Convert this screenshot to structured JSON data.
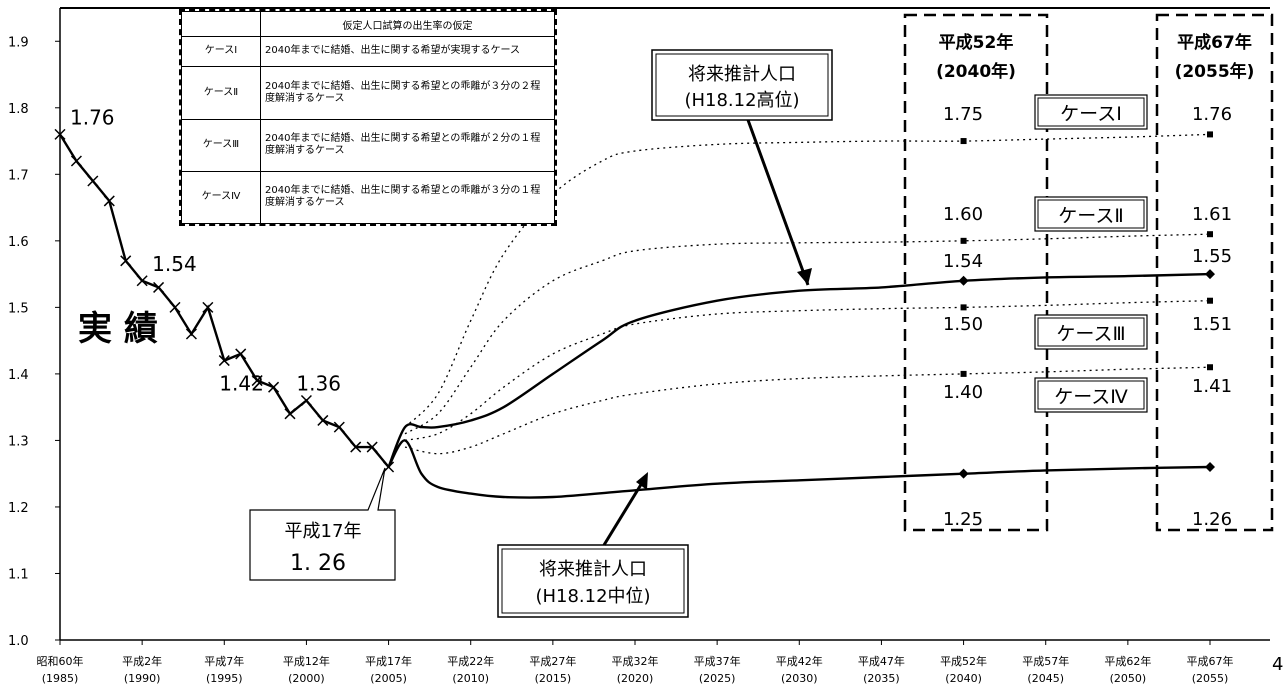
{
  "chart_data": {
    "type": "line",
    "ylim": [
      1.0,
      1.95
    ],
    "y_ticks": [
      "1.0",
      "1.1",
      "1.2",
      "1.3",
      "1.4",
      "1.5",
      "1.6",
      "1.7",
      "1.8",
      "1.9"
    ],
    "x_ticks": [
      {
        "year": 1985,
        "line1": "昭和60年",
        "line2": "(1985)"
      },
      {
        "year": 1990,
        "line1": "平成2年",
        "line2": "(1990)"
      },
      {
        "year": 1995,
        "line1": "平成7年",
        "line2": "(1995)"
      },
      {
        "year": 2000,
        "line1": "平成12年",
        "line2": "(2000)"
      },
      {
        "year": 2005,
        "line1": "平成17年",
        "line2": "(2005)"
      },
      {
        "year": 2010,
        "line1": "平成22年",
        "line2": "(2010)"
      },
      {
        "year": 2015,
        "line1": "平成27年",
        "line2": "(2015)"
      },
      {
        "year": 2020,
        "line1": "平成32年",
        "line2": "(2020)"
      },
      {
        "year": 2025,
        "line1": "平成37年",
        "line2": "(2025)"
      },
      {
        "year": 2030,
        "line1": "平成42年",
        "line2": "(2030)"
      },
      {
        "year": 2035,
        "line1": "平成47年",
        "line2": "(2035)"
      },
      {
        "year": 2040,
        "line1": "平成52年",
        "line2": "(2040)"
      },
      {
        "year": 2045,
        "line1": "平成57年",
        "line2": "(2045)"
      },
      {
        "year": 2050,
        "line1": "平成62年",
        "line2": "(2050)"
      },
      {
        "year": 2055,
        "line1": "平成67年",
        "line2": "(2055)"
      }
    ],
    "series": [
      {
        "name": "実績",
        "style": "solid-cross",
        "x": [
          1985,
          1986,
          1987,
          1988,
          1989,
          1990,
          1991,
          1992,
          1993,
          1994,
          1995,
          1996,
          1997,
          1998,
          1999,
          2000,
          2001,
          2002,
          2003,
          2004,
          2005
        ],
        "y": [
          1.76,
          1.72,
          1.69,
          1.66,
          1.57,
          1.54,
          1.53,
          1.5,
          1.46,
          1.5,
          1.42,
          1.43,
          1.39,
          1.38,
          1.34,
          1.36,
          1.33,
          1.32,
          1.29,
          1.29,
          1.26
        ]
      },
      {
        "name": "将来推計人口(H18.12高位)",
        "style": "solid",
        "x": [
          2005,
          2006,
          2007,
          2008,
          2010,
          2012,
          2015,
          2018,
          2020,
          2025,
          2030,
          2035,
          2040,
          2045,
          2050,
          2055
        ],
        "y": [
          1.26,
          1.32,
          1.32,
          1.32,
          1.33,
          1.35,
          1.4,
          1.45,
          1.48,
          1.51,
          1.525,
          1.53,
          1.54,
          1.545,
          1.547,
          1.55
        ]
      },
      {
        "name": "将来推計人口(H18.12中位)",
        "style": "solid",
        "x": [
          2005,
          2006,
          2007,
          2008,
          2010,
          2012,
          2015,
          2020,
          2025,
          2030,
          2035,
          2040,
          2045,
          2050,
          2055
        ],
        "y": [
          1.26,
          1.3,
          1.25,
          1.23,
          1.22,
          1.215,
          1.215,
          1.225,
          1.235,
          1.24,
          1.245,
          1.25,
          1.255,
          1.258,
          1.26
        ]
      },
      {
        "name": "ケースⅠ",
        "style": "dotted",
        "x": [
          2006,
          2008,
          2010,
          2012,
          2015,
          2018,
          2020,
          2025,
          2030,
          2035,
          2040,
          2045,
          2050,
          2055
        ],
        "y": [
          1.32,
          1.37,
          1.48,
          1.58,
          1.67,
          1.72,
          1.735,
          1.745,
          1.748,
          1.75,
          1.75,
          1.753,
          1.756,
          1.76
        ]
      },
      {
        "name": "ケースⅡ",
        "style": "dotted",
        "x": [
          2006,
          2008,
          2010,
          2012,
          2015,
          2018,
          2020,
          2025,
          2030,
          2035,
          2040,
          2045,
          2050,
          2055
        ],
        "y": [
          1.31,
          1.34,
          1.41,
          1.48,
          1.54,
          1.57,
          1.585,
          1.595,
          1.597,
          1.598,
          1.6,
          1.603,
          1.607,
          1.61
        ]
      },
      {
        "name": "ケースⅢ",
        "style": "dotted",
        "x": [
          2006,
          2008,
          2010,
          2012,
          2015,
          2018,
          2020,
          2025,
          2030,
          2035,
          2040,
          2045,
          2050,
          2055
        ],
        "y": [
          1.3,
          1.31,
          1.34,
          1.38,
          1.43,
          1.46,
          1.475,
          1.49,
          1.495,
          1.498,
          1.5,
          1.503,
          1.507,
          1.51
        ]
      },
      {
        "name": "ケースⅣ",
        "style": "dotted",
        "x": [
          2006,
          2008,
          2010,
          2012,
          2015,
          2018,
          2020,
          2025,
          2030,
          2035,
          2040,
          2045,
          2050,
          2055
        ],
        "y": [
          1.29,
          1.28,
          1.29,
          1.31,
          1.34,
          1.36,
          1.37,
          1.385,
          1.393,
          1.397,
          1.4,
          1.403,
          1.407,
          1.41
        ]
      }
    ],
    "point_labels": [
      {
        "text": "1.76",
        "x": 1985,
        "y": 1.76
      },
      {
        "text": "1.54",
        "x": 1990,
        "y": 1.54
      },
      {
        "text": "1.42",
        "x": 1995,
        "y": 1.42
      },
      {
        "text": "1.36",
        "x": 2000,
        "y": 1.36
      }
    ],
    "value_labels_2040": [
      "1.75",
      "1.60",
      "1.54",
      "1.50",
      "1.40",
      "1.25"
    ],
    "value_labels_2055": [
      "1.76",
      "1.61",
      "1.55",
      "1.51",
      "1.41",
      "1.26"
    ],
    "big_label": "実 績",
    "case_boxes": [
      "ケースⅠ",
      "ケースⅡ",
      "ケースⅢ",
      "ケースⅣ"
    ],
    "year_boxes": [
      {
        "line1": "平成52年",
        "line2": "(2040年)"
      },
      {
        "line1": "平成67年",
        "line2": "(2055年)"
      }
    ],
    "callouts": {
      "high": {
        "line1": "将来推計人口",
        "line2": "(H18.12高位)"
      },
      "mid": {
        "line1": "将来推計人口",
        "line2": "(H18.12中位)"
      },
      "h17": {
        "line1": "平成17年",
        "line2": "1. 26"
      }
    },
    "legend_table": {
      "header": "仮定人口試算の出生率の仮定",
      "rows": [
        {
          "case": "ケースⅠ",
          "text": "2040年までに結婚、出生に関する希望が実現するケース"
        },
        {
          "case": "ケースⅡ",
          "text": "2040年までに結婚、出生に関する希望との乖離が３分の２程度解消するケース"
        },
        {
          "case": "ケースⅢ",
          "text": "2040年までに結婚、出生に関する希望との乖離が２分の１程度解消するケース"
        },
        {
          "case": "ケースⅣ",
          "text": "2040年までに結婚、出生に関する希望との乖離が３分の１程度解消するケース"
        }
      ]
    },
    "page_number": "4"
  }
}
